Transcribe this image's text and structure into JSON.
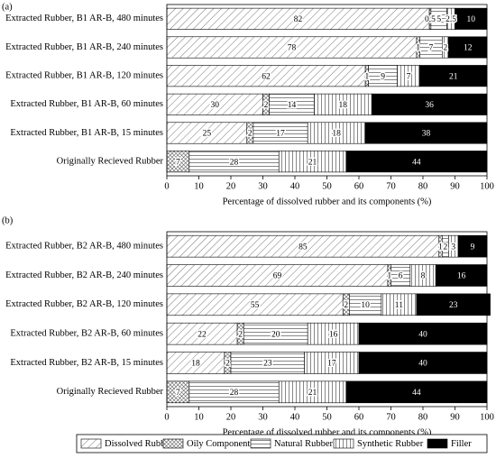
{
  "chart_data": [
    {
      "type": "bar",
      "orientation": "horizontal",
      "stacked": true,
      "label": "(a)",
      "categories": [
        "Extracted Rubber, B1 AR-B, 480 minutes",
        "Extracted Rubber, B1 AR-B, 240 minutes",
        "Extracted Rubber, B1 AR-B, 120 minutes",
        "Extracted Rubber, B1 AR-B, 60 minutes",
        "Extracted Rubber, B1 AR-B, 15 minutes",
        "Originally Recieved Rubber"
      ],
      "series": [
        {
          "color": "#ffffff",
          "pattern": "diag",
          "values": [
            82,
            78,
            62,
            30,
            25,
            0
          ]
        },
        {
          "color": "#ffffff",
          "pattern": "cross",
          "values": [
            0.5,
            1,
            1,
            2,
            2,
            7
          ]
        },
        {
          "color": "#ffffff",
          "pattern": "horiz",
          "values": [
            5,
            7,
            9,
            14,
            17,
            28
          ]
        },
        {
          "color": "#ffffff",
          "pattern": "vert",
          "values": [
            2.5,
            2,
            7,
            18,
            18,
            21
          ]
        },
        {
          "color": "#000000",
          "values": [
            10,
            12,
            21,
            36,
            38,
            44
          ]
        }
      ],
      "xlim": [
        0,
        100
      ],
      "xticks": [
        0,
        10,
        20,
        30,
        40,
        50,
        60,
        70,
        80,
        90,
        100
      ],
      "x_label": "Percentage of dissolved rubber and its components (%)"
    },
    {
      "type": "bar",
      "orientation": "horizontal",
      "stacked": true,
      "label": "(b)",
      "categories": [
        "Extracted Rubber, B2 AR-B, 480 minutes",
        "Extracted Rubber, B2 AR-B, 240 minutes",
        "Extracted Rubber, B2 AR-B, 120 minutes",
        "Extracted Rubber, B2 AR-B, 60 minutes",
        "Extracted Rubber, B2 AR-B, 15 minutes",
        "Originally Recieved Rubber"
      ],
      "series": [
        {
          "name": "Dissolved Rubber",
          "color": "#ffffff",
          "pattern": "diag",
          "values": [
            85,
            69,
            55,
            22,
            18,
            0
          ]
        },
        {
          "name": "Oily Components",
          "color": "#ffffff",
          "pattern": "cross",
          "values": [
            1,
            1,
            2,
            2,
            2,
            7
          ]
        },
        {
          "name": "Natural Rubber",
          "color": "#ffffff",
          "pattern": "horiz",
          "values": [
            2,
            6,
            10,
            20,
            23,
            28
          ]
        },
        {
          "name": "Synthetic Rubber",
          "color": "#ffffff",
          "pattern": "vert",
          "values": [
            3,
            8,
            11,
            16,
            17,
            21
          ]
        },
        {
          "name": "Filler",
          "color": "#000000",
          "values": [
            9,
            16,
            23,
            40,
            40,
            44
          ]
        }
      ],
      "xlim": [
        0,
        100
      ],
      "xticks": [
        0,
        10,
        20,
        30,
        40,
        50,
        60,
        70,
        80,
        90,
        100
      ],
      "x_label": "Percentage of dissolved rubber and its components (%)",
      "legend": "bottom"
    }
  ]
}
